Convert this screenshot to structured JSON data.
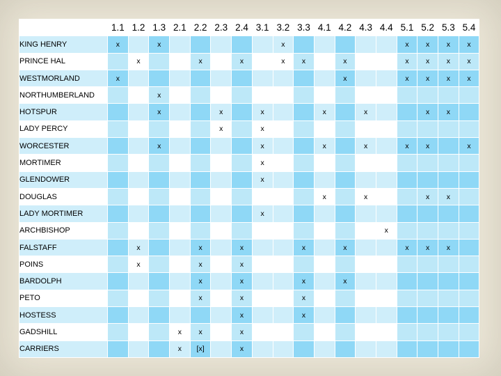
{
  "columns": [
    "1.1",
    "1.2",
    "1.3",
    "2.1",
    "2.2",
    "2.3",
    "2.4",
    "3.1",
    "3.2",
    "3.3",
    "4.1",
    "4.2",
    "4.3",
    "4.4",
    "5.1",
    "5.2",
    "5.3",
    "5.4"
  ],
  "rows": [
    {
      "name": "KING HENRY",
      "cells": [
        "x",
        "",
        "x",
        "",
        "",
        "",
        "",
        "",
        "x",
        "",
        "",
        "",
        "",
        "",
        "x",
        "x",
        "x",
        "x"
      ]
    },
    {
      "name": "PRINCE HAL",
      "cells": [
        "",
        "x",
        "",
        "",
        "x",
        "",
        "x",
        "",
        "x",
        "x",
        "",
        "x",
        "",
        "",
        "x",
        "x",
        "x",
        "x"
      ]
    },
    {
      "name": "WESTMORLAND",
      "cells": [
        "x",
        "",
        "",
        "",
        "",
        "",
        "",
        "",
        "",
        "",
        "",
        "x",
        "",
        "",
        "x",
        "x",
        "x",
        "x"
      ]
    },
    {
      "name": "NORTHUMBERLAND",
      "cells": [
        "",
        "",
        "x",
        "",
        "",
        "",
        "",
        "",
        "",
        "",
        "",
        "",
        "",
        "",
        "",
        "",
        "",
        ""
      ]
    },
    {
      "name": "HOTSPUR",
      "cells": [
        "",
        "",
        "x",
        "",
        "",
        "x",
        "",
        "x",
        "",
        "",
        "x",
        "",
        "x",
        "",
        "",
        "x",
        "x",
        ""
      ]
    },
    {
      "name": "LADY PERCY",
      "cells": [
        "",
        "",
        "",
        "",
        "",
        "x",
        "",
        "x",
        "",
        "",
        "",
        "",
        "",
        "",
        "",
        "",
        "",
        ""
      ]
    },
    {
      "name": "WORCESTER",
      "cells": [
        "",
        "",
        "x",
        "",
        "",
        "",
        "",
        "x",
        "",
        "",
        "x",
        "",
        "x",
        "",
        "x",
        "x",
        "",
        "x"
      ]
    },
    {
      "name": "MORTIMER",
      "cells": [
        "",
        "",
        "",
        "",
        "",
        "",
        "",
        "x",
        "",
        "",
        "",
        "",
        "",
        "",
        "",
        "",
        "",
        ""
      ]
    },
    {
      "name": "GLENDOWER",
      "cells": [
        "",
        "",
        "",
        "",
        "",
        "",
        "",
        "x",
        "",
        "",
        "",
        "",
        "",
        "",
        "",
        "",
        "",
        ""
      ]
    },
    {
      "name": "DOUGLAS",
      "cells": [
        "",
        "",
        "",
        "",
        "",
        "",
        "",
        "",
        "",
        "",
        "x",
        "",
        "x",
        "",
        "",
        "x",
        "x",
        ""
      ]
    },
    {
      "name": "LADY MORTIMER",
      "cells": [
        "",
        "",
        "",
        "",
        "",
        "",
        "",
        "x",
        "",
        "",
        "",
        "",
        "",
        "",
        "",
        "",
        "",
        ""
      ]
    },
    {
      "name": "ARCHBISHOP",
      "cells": [
        "",
        "",
        "",
        "",
        "",
        "",
        "",
        "",
        "",
        "",
        "",
        "",
        "",
        "x",
        "",
        "",
        "",
        ""
      ]
    },
    {
      "name": "FALSTAFF",
      "cells": [
        "",
        "x",
        "",
        "",
        "x",
        "",
        "x",
        "",
        "",
        "x",
        "",
        "x",
        "",
        "",
        "x",
        "x",
        "x",
        ""
      ]
    },
    {
      "name": "POINS",
      "cells": [
        "",
        "x",
        "",
        "",
        "x",
        "",
        "x",
        "",
        "",
        "",
        "",
        "",
        "",
        "",
        "",
        "",
        "",
        ""
      ]
    },
    {
      "name": "BARDOLPH",
      "cells": [
        "",
        "",
        "",
        "",
        "x",
        "",
        "x",
        "",
        "",
        "x",
        "",
        "x",
        "",
        "",
        "",
        "",
        "",
        ""
      ]
    },
    {
      "name": "PETO",
      "cells": [
        "",
        "",
        "",
        "",
        "x",
        "",
        "x",
        "",
        "",
        "x",
        "",
        "",
        "",
        "",
        "",
        "",
        "",
        ""
      ]
    },
    {
      "name": "HOSTESS",
      "cells": [
        "",
        "",
        "",
        "",
        "",
        "",
        "x",
        "",
        "",
        "x",
        "",
        "",
        "",
        "",
        "",
        "",
        "",
        ""
      ]
    },
    {
      "name": "GADSHILL",
      "cells": [
        "",
        "",
        "",
        "x",
        "x",
        "",
        "x",
        "",
        "",
        "",
        "",
        "",
        "",
        "",
        "",
        "",
        "",
        ""
      ]
    },
    {
      "name": "CARRIERS",
      "cells": [
        "",
        "",
        "",
        "x",
        "[x]",
        "",
        "x",
        "",
        "",
        "",
        "",
        "",
        "",
        "",
        "",
        "",
        "",
        ""
      ]
    }
  ],
  "highlight_columns": [
    0,
    2,
    4,
    6,
    9,
    11,
    14,
    15,
    16,
    17
  ],
  "colors": {
    "background": "#ece7d8",
    "row_light": "#cfeefa",
    "row_light_highlight": "#8fd8f6",
    "row_white": "#ffffff",
    "row_white_highlight": "#bde8f8"
  }
}
